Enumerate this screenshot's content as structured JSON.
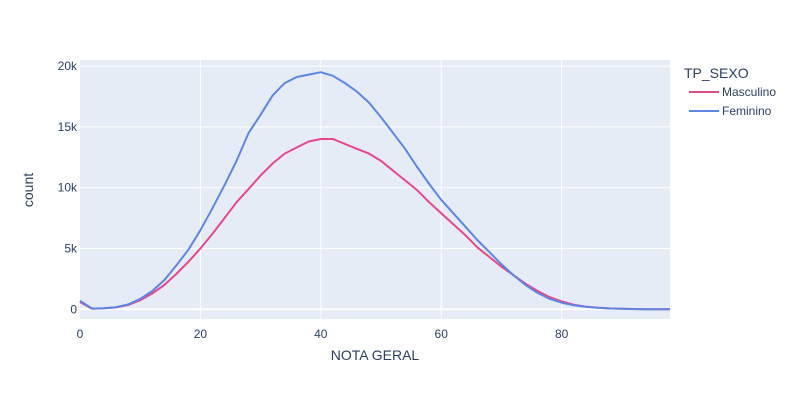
{
  "chart_data": {
    "type": "line",
    "xlabel": "NOTA GERAL",
    "ylabel": "count",
    "xlim": [
      0,
      98
    ],
    "ylim": [
      -800,
      20500
    ],
    "x_ticks": [
      0,
      20,
      40,
      60,
      80
    ],
    "y_ticks": [
      0,
      5000,
      10000,
      15000,
      20000
    ],
    "y_tick_labels": [
      "0",
      "5k",
      "10k",
      "15k",
      "20k"
    ],
    "grid": true,
    "legend": {
      "title": "TP_SEXO",
      "position": "top-right"
    },
    "series": [
      {
        "name": "Masculino",
        "color": "#e8468b",
        "x": [
          0,
          2,
          4,
          6,
          8,
          10,
          12,
          14,
          16,
          18,
          20,
          22,
          24,
          26,
          28,
          30,
          32,
          34,
          36,
          38,
          40,
          42,
          44,
          46,
          48,
          50,
          52,
          54,
          56,
          58,
          60,
          62,
          64,
          66,
          68,
          70,
          72,
          74,
          76,
          78,
          80,
          82,
          84,
          86,
          88,
          90,
          92,
          94,
          96,
          98
        ],
        "values": [
          600,
          50,
          80,
          150,
          350,
          750,
          1300,
          2000,
          2900,
          3900,
          5000,
          6200,
          7500,
          8800,
          9900,
          11000,
          12000,
          12800,
          13300,
          13800,
          14000,
          14000,
          13600,
          13200,
          12800,
          12200,
          11400,
          10600,
          9800,
          8800,
          7900,
          7000,
          6100,
          5100,
          4300,
          3500,
          2800,
          2100,
          1500,
          1000,
          650,
          380,
          220,
          130,
          70,
          40,
          20,
          10,
          5,
          0
        ]
      },
      {
        "name": "Feminino",
        "color": "#5b86e5",
        "x": [
          0,
          2,
          4,
          6,
          8,
          10,
          12,
          14,
          16,
          18,
          20,
          22,
          24,
          26,
          28,
          30,
          32,
          34,
          36,
          38,
          40,
          42,
          44,
          46,
          48,
          50,
          52,
          54,
          56,
          58,
          60,
          62,
          64,
          66,
          68,
          70,
          72,
          74,
          76,
          78,
          80,
          82,
          84,
          86,
          88,
          90,
          92,
          94,
          96,
          98
        ],
        "values": [
          700,
          60,
          90,
          170,
          400,
          850,
          1500,
          2400,
          3600,
          4900,
          6500,
          8300,
          10200,
          12200,
          14500,
          16000,
          17600,
          18600,
          19100,
          19300,
          19500,
          19200,
          18600,
          17900,
          17000,
          15800,
          14500,
          13200,
          11700,
          10300,
          9000,
          7900,
          6800,
          5700,
          4700,
          3700,
          2800,
          2000,
          1350,
          850,
          550,
          330,
          200,
          120,
          65,
          35,
          18,
          9,
          4,
          0
        ]
      }
    ]
  }
}
